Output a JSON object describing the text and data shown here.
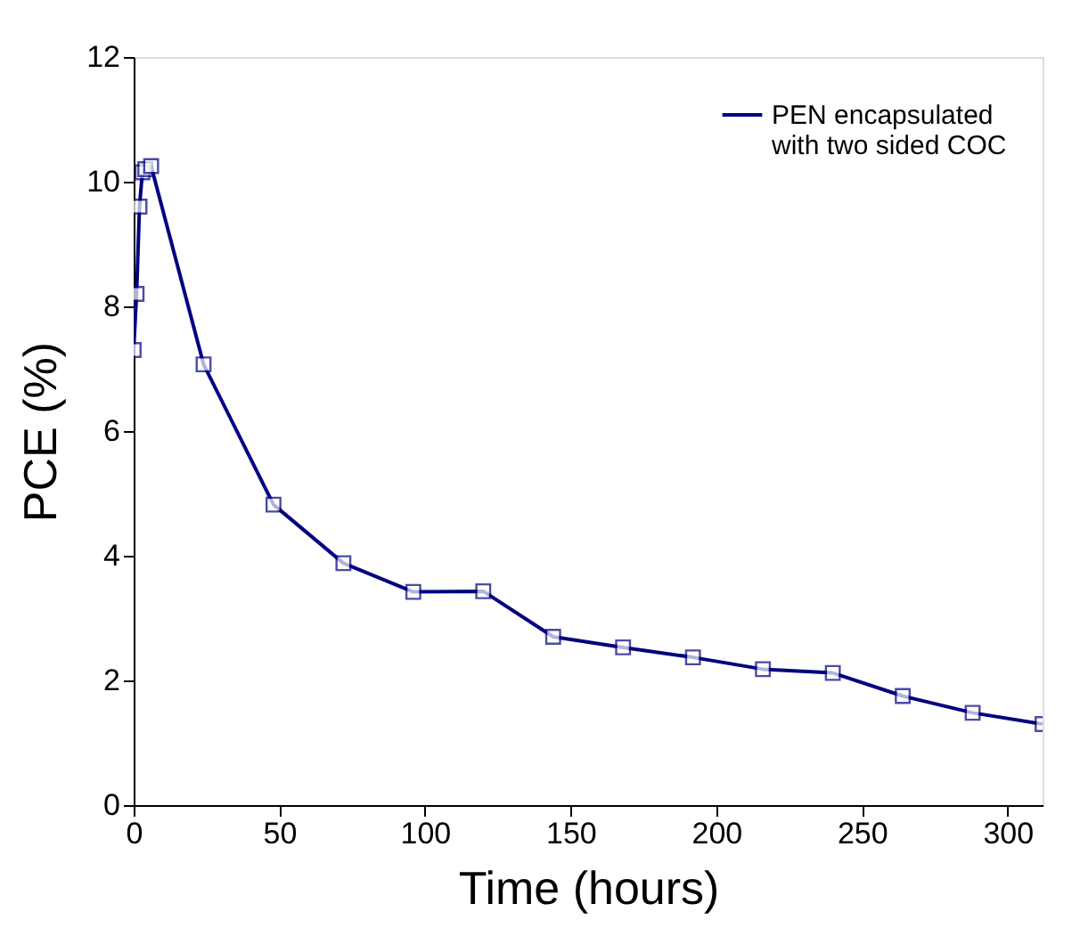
{
  "chart_data": {
    "type": "line",
    "xlabel": "Time (hours)",
    "ylabel": "PCE (%)",
    "x": [
      0,
      1,
      2,
      3,
      4,
      6,
      24,
      48,
      72,
      96,
      120,
      144,
      168,
      192,
      216,
      240,
      264,
      288,
      312
    ],
    "series": [
      {
        "name": "PEN encapsulated\nwith two sided COC",
        "color": "#000080",
        "values": [
          7.3,
          8.2,
          9.6,
          10.15,
          10.2,
          10.25,
          7.07,
          4.82,
          3.88,
          3.42,
          3.43,
          2.7,
          2.53,
          2.37,
          2.18,
          2.12,
          1.75,
          1.48,
          1.3
        ]
      }
    ],
    "xlim": [
      0,
      312
    ],
    "xticks": [
      0,
      50,
      100,
      150,
      200,
      250,
      300
    ],
    "ylim": [
      0,
      12
    ],
    "yticks": [
      0,
      2,
      4,
      6,
      8,
      10,
      12
    ],
    "grid": false,
    "legend": "top right",
    "marker": "square",
    "line_style": "solid"
  }
}
